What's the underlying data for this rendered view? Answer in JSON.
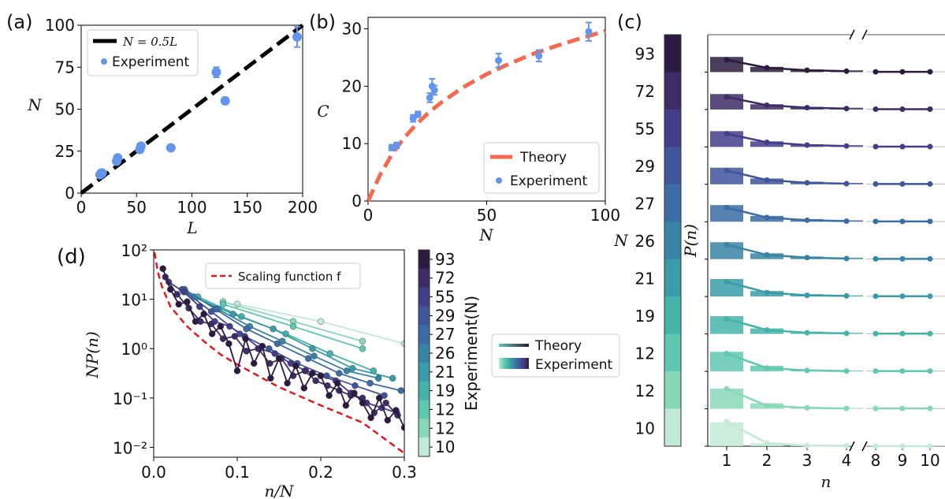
{
  "colors": {
    "blue": "#6495ED",
    "orange": "#F4694F",
    "red": "#E8181C",
    "black": "#000000",
    "cmap": [
      "#c2ead6",
      "#88d8b8",
      "#5ec8b0",
      "#44b4aa",
      "#3a9ca8",
      "#3784a6",
      "#3b6ca3",
      "#40559a",
      "#433e8a",
      "#3d2c66",
      "#2c1b40"
    ]
  },
  "chart_data": [
    {
      "id": "a",
      "type": "scatter",
      "panel_label": "(a)",
      "xlabel": "L",
      "ylabel": "N",
      "xlim": [
        0,
        200
      ],
      "ylim": [
        0,
        100
      ],
      "xticks": [
        0,
        50,
        100,
        150,
        200
      ],
      "yticks": [
        0,
        25,
        50,
        75,
        100
      ],
      "legend": {
        "position": "top-left",
        "entries": [
          "N = 0.5L",
          "Experiment"
        ]
      },
      "series": [
        {
          "name": "N = 0.5L",
          "kind": "line",
          "style": "dashed",
          "x": [
            0,
            200
          ],
          "y": [
            0,
            100
          ]
        },
        {
          "name": "Experiment",
          "kind": "scatter",
          "x": [
            17,
            18,
            19,
            32,
            33,
            53,
            54,
            81,
            122,
            130,
            195
          ],
          "y": [
            11,
            12,
            12,
            19,
            21,
            26,
            28,
            27,
            72,
            55,
            93
          ],
          "yerr": [
            1,
            1,
            1,
            1,
            1,
            1,
            1,
            1,
            3,
            2,
            6
          ]
        }
      ]
    },
    {
      "id": "b",
      "type": "scatter",
      "panel_label": "(b)",
      "xlabel": "N",
      "ylabel": "C",
      "xlim": [
        0,
        100
      ],
      "ylim": [
        0,
        32
      ],
      "xticks": [
        0,
        50,
        100
      ],
      "yticks": [
        0,
        10,
        20,
        30
      ],
      "legend": {
        "position": "bottom-right",
        "entries": [
          "Theory",
          "Experiment"
        ]
      },
      "series": [
        {
          "name": "Theory",
          "kind": "line",
          "style": "dashed",
          "x": [
            0,
            5,
            10,
            15,
            20,
            25,
            30,
            40,
            50,
            60,
            70,
            80,
            90,
            100
          ],
          "y": [
            0,
            4.5,
            8.1,
            10.9,
            13.2,
            15.2,
            16.9,
            19.8,
            22.1,
            24.0,
            25.7,
            27.1,
            28.4,
            29.6
          ]
        },
        {
          "name": "Experiment",
          "kind": "scatter",
          "x": [
            10,
            12,
            19,
            21,
            26,
            27,
            28,
            55,
            72,
            93
          ],
          "y": [
            9.3,
            9.7,
            14.4,
            15.1,
            18.0,
            20.0,
            19.3,
            24.5,
            25.3,
            29.5
          ],
          "yerr": [
            0.5,
            0.5,
            0.6,
            0.5,
            0.8,
            1.3,
            0.8,
            1.2,
            1.0,
            1.6
          ]
        }
      ]
    },
    {
      "id": "c",
      "type": "bar",
      "panel_label": "(c)",
      "xlabel": "n",
      "ylabel": "P(n)",
      "row_axis_label": "N",
      "xticks": [
        "1",
        "2",
        "3",
        "4",
        "8",
        "9",
        "10"
      ],
      "rows": [
        {
          "N": "93",
          "bars": [
            0.52,
            0.18,
            0.09,
            0.06
          ],
          "theory": [
            0.4,
            0.14,
            0.06,
            0.03,
            0.01,
            0.01,
            0.01
          ]
        },
        {
          "N": "72",
          "bars": [
            0.53,
            0.18,
            0.09,
            0.06
          ],
          "theory": [
            0.41,
            0.14,
            0.06,
            0.03,
            0.01,
            0.01,
            0.01
          ]
        },
        {
          "N": "55",
          "bars": [
            0.54,
            0.19,
            0.09,
            0.06
          ],
          "theory": [
            0.43,
            0.15,
            0.06,
            0.03,
            0.01,
            0.01,
            0.01
          ]
        },
        {
          "N": "29",
          "bars": [
            0.57,
            0.2,
            0.09,
            0.05
          ],
          "theory": [
            0.45,
            0.14,
            0.05,
            0.02,
            0.01,
            0.01,
            0.01
          ]
        },
        {
          "N": "27",
          "bars": [
            0.57,
            0.2,
            0.09,
            0.05
          ],
          "theory": [
            0.46,
            0.14,
            0.05,
            0.02,
            0.01,
            0.01,
            0.01
          ]
        },
        {
          "N": "26",
          "bars": [
            0.58,
            0.2,
            0.09,
            0.05
          ],
          "theory": [
            0.47,
            0.14,
            0.05,
            0.02,
            0.01,
            0.01,
            0.01
          ]
        },
        {
          "N": "21",
          "bars": [
            0.6,
            0.19,
            0.08,
            0.04
          ],
          "theory": [
            0.48,
            0.13,
            0.04,
            0.02,
            0.01,
            0.01,
            0.01
          ]
        },
        {
          "N": "19",
          "bars": [
            0.61,
            0.19,
            0.08,
            0.04
          ],
          "theory": [
            0.49,
            0.13,
            0.04,
            0.02,
            0.01,
            0.01,
            0.01
          ]
        },
        {
          "N": "12",
          "bars": [
            0.67,
            0.19,
            0.06,
            0.03
          ],
          "theory": [
            0.58,
            0.11,
            0.03,
            0.01,
            0.01,
            0.01,
            0.01
          ]
        },
        {
          "N": "12",
          "bars": [
            0.69,
            0.19,
            0.06,
            0.03
          ],
          "theory": [
            0.65,
            0.1,
            0.03,
            0.01,
            0.01,
            0.01,
            0.01
          ]
        },
        {
          "N": "10",
          "bars": [
            0.82,
            0.1,
            0.03,
            0.01
          ],
          "theory": [
            0.8,
            0.1,
            0.02,
            0.01,
            0.0,
            0.0,
            0.0
          ]
        }
      ]
    },
    {
      "id": "d",
      "type": "line",
      "panel_label": "(d)",
      "xlabel": "n/N",
      "ylabel": "NP(n)",
      "xlim": [
        0,
        0.3
      ],
      "ylim_log10": [
        -2.2,
        2
      ],
      "log_y": true,
      "xticks": [
        0.0,
        0.1,
        0.2,
        0.3
      ],
      "yticks": [
        {
          "log10": 2,
          "label": "10²"
        },
        {
          "log10": 1,
          "label": "10¹"
        },
        {
          "log10": 0,
          "label": "10⁰"
        },
        {
          "log10": -1,
          "label": "10⁻¹"
        },
        {
          "log10": -2,
          "label": "10⁻²"
        }
      ],
      "scaling_function": {
        "name": "Scaling function f",
        "x": [
          0.001,
          0.005,
          0.01,
          0.02,
          0.04,
          0.06,
          0.08,
          0.1,
          0.15,
          0.2,
          0.25,
          0.3
        ],
        "log10": [
          1.95,
          1.55,
          1.25,
          0.85,
          0.45,
          0.15,
          -0.12,
          -0.32,
          -0.78,
          -1.15,
          -1.5,
          -2.12
        ]
      },
      "series": [
        {
          "N": "93",
          "x": [
            0.011,
            0.02,
            0.03,
            0.04,
            0.05,
            0.06,
            0.07,
            0.08,
            0.09,
            0.1,
            0.11,
            0.12,
            0.13,
            0.14,
            0.15,
            0.16,
            0.17,
            0.18,
            0.19,
            0.2,
            0.21,
            0.22,
            0.23,
            0.24,
            0.25,
            0.26,
            0.27,
            0.28,
            0.29,
            0.3
          ],
          "log10": [
            1.62,
            1.2,
            0.9,
            0.95,
            0.55,
            0.7,
            0.3,
            0.45,
            0.1,
            -0.45,
            0.2,
            -0.3,
            0.05,
            -0.6,
            -0.2,
            -0.7,
            -0.35,
            -0.8,
            -0.5,
            -0.55,
            -0.95,
            -0.7,
            -1.15,
            -0.9,
            -1.1,
            -1.4,
            -1.0,
            -1.45,
            -1.25,
            -1.6
          ]
        },
        {
          "N": "72",
          "x": [
            0.014,
            0.028,
            0.042,
            0.056,
            0.069,
            0.083,
            0.097,
            0.111,
            0.125,
            0.139,
            0.153,
            0.167,
            0.181,
            0.194,
            0.208,
            0.222,
            0.236,
            0.25,
            0.264,
            0.278,
            0.292
          ],
          "log10": [
            1.45,
            1.1,
            0.82,
            0.55,
            0.5,
            0.2,
            0.25,
            -0.05,
            0.0,
            -0.3,
            -0.2,
            -0.55,
            -0.45,
            -0.65,
            -0.75,
            -0.85,
            -0.95,
            -1.0,
            -1.3,
            -1.1,
            -1.35
          ]
        },
        {
          "N": "55",
          "x": [
            0.018,
            0.036,
            0.055,
            0.073,
            0.091,
            0.109,
            0.127,
            0.145,
            0.164,
            0.182,
            0.2,
            0.218,
            0.236,
            0.255,
            0.273,
            0.291
          ],
          "log10": [
            1.35,
            1.15,
            0.85,
            0.55,
            0.45,
            0.25,
            0.0,
            -0.1,
            -0.3,
            -0.45,
            -0.55,
            -0.65,
            -0.9,
            -1.1,
            -1.2,
            -1.3
          ]
        },
        {
          "N": "29",
          "x": [
            0.034,
            0.069,
            0.103,
            0.138,
            0.172,
            0.207,
            0.241,
            0.276
          ],
          "log10": [
            1.2,
            0.75,
            0.3,
            0.0,
            -0.3,
            -0.55,
            -0.75,
            -0.95
          ]
        },
        {
          "N": "27",
          "x": [
            0.037,
            0.074,
            0.111,
            0.148,
            0.185,
            0.222,
            0.259,
            0.296
          ],
          "log10": [
            1.2,
            0.8,
            0.4,
            0.1,
            -0.2,
            -0.5,
            -0.7,
            -0.85
          ]
        },
        {
          "N": "26",
          "x": [
            0.038,
            0.077,
            0.115,
            0.154,
            0.192,
            0.231,
            0.269
          ],
          "log10": [
            1.15,
            0.8,
            0.45,
            0.15,
            -0.15,
            -0.45,
            -0.6
          ]
        },
        {
          "N": "21",
          "x": [
            0.048,
            0.095,
            0.143,
            0.19,
            0.238,
            0.286
          ],
          "log10": [
            1.05,
            0.7,
            0.4,
            0.0,
            -0.4,
            -0.6
          ]
        },
        {
          "N": "19",
          "x": [
            0.053,
            0.105,
            0.158,
            0.211,
            0.263
          ],
          "log10": [
            1.05,
            0.65,
            0.3,
            -0.1,
            -0.45
          ]
        },
        {
          "N": "12",
          "x": [
            0.083,
            0.167,
            0.25
          ],
          "log10": [
            0.9,
            0.45,
            0.0
          ]
        },
        {
          "N": "12",
          "x": [
            0.083,
            0.167,
            0.25
          ],
          "log10": [
            0.95,
            0.55,
            0.15
          ]
        },
        {
          "N": "10",
          "x": [
            0.1,
            0.2,
            0.3
          ],
          "log10": [
            0.9,
            0.55,
            0.1
          ]
        }
      ],
      "legend": {
        "position": "top-right",
        "entries": [
          "Scaling function f"
        ]
      },
      "colorbar": {
        "label": "Experiment(N)",
        "ticks": [
          "93",
          "72",
          "55",
          "29",
          "27",
          "26",
          "21",
          "19",
          "12",
          "12",
          "10"
        ]
      },
      "outer_legend": {
        "entries": [
          "Theory",
          "Experiment"
        ]
      }
    }
  ]
}
